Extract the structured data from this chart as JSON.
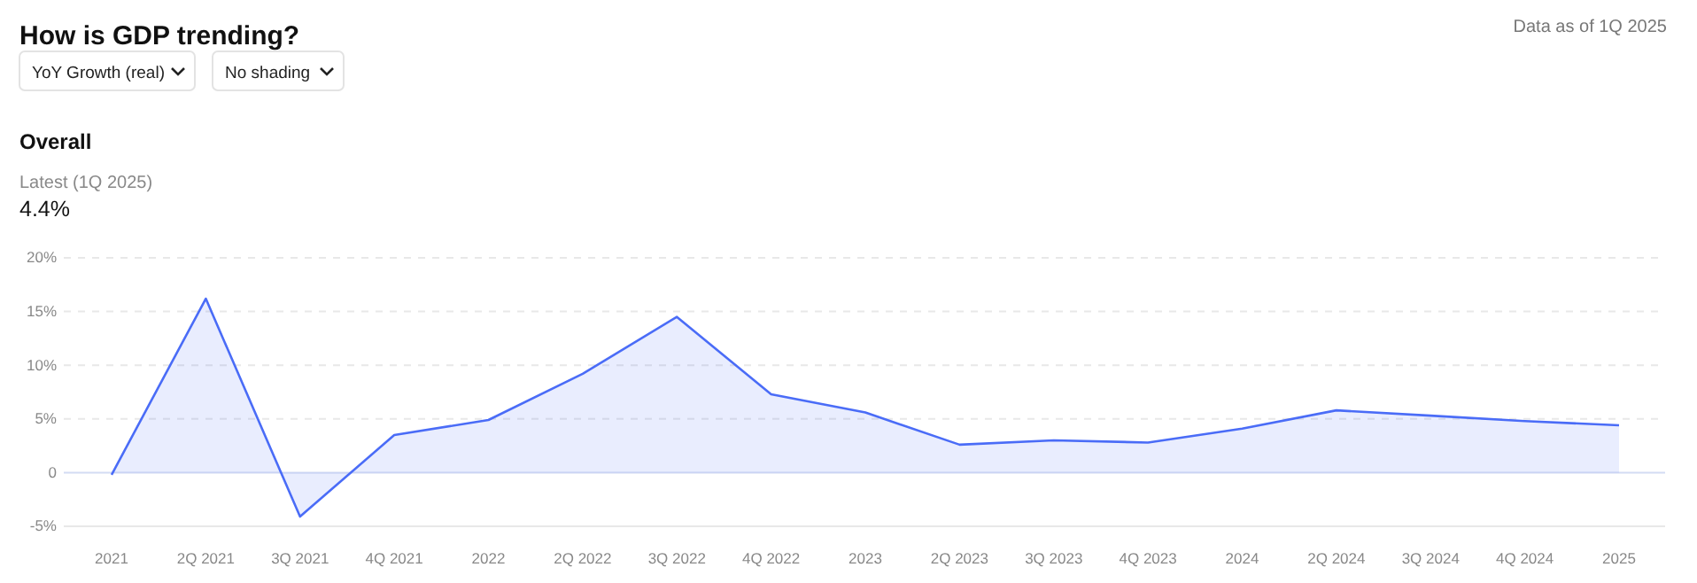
{
  "chart_data": {
    "type": "area",
    "title": "How is GDP trending?",
    "subtitle": "Overall",
    "annotations": [
      "Data as of 1Q 2025",
      "YoY Growth (real)",
      "No shading",
      "Latest (1Q 2025)",
      "4.4%"
    ],
    "categories": [
      "2021",
      "2Q 2021",
      "3Q 2021",
      "4Q 2021",
      "2022",
      "2Q 2022",
      "3Q 2022",
      "4Q 2022",
      "2023",
      "2Q 2023",
      "3Q 2023",
      "4Q 2023",
      "2024",
      "2Q 2024",
      "3Q 2024",
      "4Q 2024",
      "2025"
    ],
    "series": [
      {
        "color": "#4a6cf7",
        "values": [
          -0.2,
          16.2,
          -4.1,
          3.5,
          4.9,
          9.2,
          14.5,
          7.3,
          5.6,
          2.6,
          3.0,
          2.8,
          4.1,
          5.8,
          5.3,
          4.8,
          4.4
        ]
      }
    ],
    "ylim": [
      -5,
      20
    ],
    "yticks": [
      {
        "value": -5,
        "label": "-5%"
      },
      0,
      {
        "value": 5,
        "label": "5%"
      },
      {
        "value": 10,
        "label": "10%"
      },
      {
        "value": 15,
        "label": "15%"
      },
      {
        "value": 20,
        "label": "20%"
      }
    ],
    "grid": "y",
    "marker": "none",
    "line_style": "solid"
  }
}
